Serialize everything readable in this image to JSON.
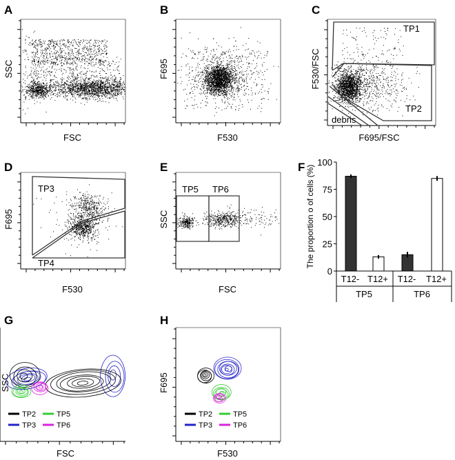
{
  "panels": {
    "A": {
      "label": "A",
      "xlabel": "FSC",
      "ylabel": "SSC"
    },
    "B": {
      "label": "B",
      "xlabel": "F530",
      "ylabel": "F695"
    },
    "C": {
      "label": "C",
      "xlabel": "F695/FSC",
      "ylabel": "F530/FSC",
      "gates": [
        "TP1",
        "TP2",
        "debris"
      ]
    },
    "D": {
      "label": "D",
      "xlabel": "F530",
      "ylabel": "F695",
      "gates": [
        "TP3",
        "TP4"
      ]
    },
    "E": {
      "label": "E",
      "xlabel": "FSC",
      "ylabel": "SSC",
      "gates": [
        "TP5",
        "TP6"
      ]
    },
    "F": {
      "label": "F"
    },
    "G": {
      "label": "G",
      "xlabel": "FSC",
      "ylabel": "SSC"
    },
    "H": {
      "label": "H",
      "xlabel": "F530",
      "ylabel": "F695"
    }
  },
  "legend": [
    {
      "name": "TP2",
      "color": "#000000"
    },
    {
      "name": "TP5",
      "color": "#33cc33"
    },
    {
      "name": "TP3",
      "color": "#2222cc"
    },
    {
      "name": "TP6",
      "color": "#dd22dd"
    }
  ],
  "chart_data": {
    "type": "bar",
    "ylabel": "The proportion o of cells (%)",
    "ylim": [
      0,
      100
    ],
    "yticks": [
      "0",
      "25",
      "50",
      "75",
      "100"
    ],
    "categories": [
      "T12-",
      "T12+",
      "T12-",
      "T12+"
    ],
    "groups": [
      "TP5",
      "TP6"
    ],
    "values": [
      87,
      13,
      15,
      85
    ],
    "errors": [
      1,
      1,
      2,
      1.5
    ],
    "colors": [
      "#333333",
      "#ffffff",
      "#333333",
      "#ffffff"
    ]
  }
}
